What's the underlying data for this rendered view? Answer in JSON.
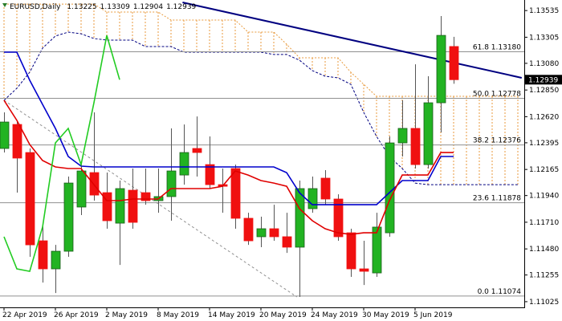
{
  "chart_data": {
    "type": "candlestick",
    "title": "EURUSD,Daily",
    "categories": [
      "22 Apr 2019",
      null,
      null,
      null,
      "26 Apr 2019",
      null,
      null,
      null,
      "2 May 2019",
      null,
      null,
      null,
      "8 May 2019",
      null,
      null,
      null,
      "14 May 2019",
      null,
      null,
      null,
      "20 May 2019",
      null,
      null,
      null,
      "24 May 2019",
      null,
      null,
      null,
      "30 May 2019",
      null,
      null,
      null,
      "5 Jun 2019",
      null,
      null,
      null,
      null,
      null,
      null,
      null,
      null
    ],
    "open": [
      1.12346,
      1.12553,
      1.12311,
      1.1155,
      1.11308,
      1.1146,
      1.11841,
      1.12138,
      1.11965,
      1.11702,
      1.11986,
      1.11965,
      1.11896,
      1.11931,
      1.12117,
      1.12346,
      1.12207,
      1.12034,
      1.12173,
      1.11744,
      1.11585,
      1.11654,
      1.11585,
      1.11495,
      1.11827,
      1.1209,
      1.1191,
      1.11619,
      1.11308,
      1.11273,
      1.11619,
      1.12394,
      1.12519,
      1.12207,
      1.1274,
      1.13225,
      null,
      null,
      null,
      null,
      null
    ],
    "high": [
      1.12657,
      1.12588,
      1.12346,
      1.11688,
      1.11515,
      1.12104,
      1.12207,
      1.12657,
      1.12138,
      1.12069,
      1.12173,
      1.12173,
      1.12173,
      1.12519,
      1.12553,
      1.12622,
      1.1245,
      1.12173,
      1.12207,
      1.11792,
      1.11758,
      1.11861,
      1.11792,
      1.12069,
      1.12104,
      1.12159,
      1.11951,
      1.11654,
      1.1155,
      1.11792,
      1.1245,
      1.12761,
      1.13072,
      1.12969,
      1.13488,
      1.13309,
      null,
      null,
      null,
      null,
      null
    ],
    "low": [
      1.12311,
      1.11965,
      1.11412,
      1.1119,
      1.111,
      1.11412,
      1.11772,
      1.11896,
      1.11654,
      1.11342,
      1.11654,
      1.11861,
      1.11792,
      1.11723,
      1.12034,
      1.12104,
      1.12,
      1.11792,
      1.11654,
      1.11515,
      1.11495,
      1.1155,
      1.11446,
      1.11066,
      1.11792,
      1.11861,
      1.1155,
      1.11239,
      1.11169,
      1.11239,
      1.11585,
      1.12277,
      1.12173,
      1.12173,
      1.12484,
      1.12904,
      null,
      null,
      null,
      null,
      null
    ],
    "close": [
      1.12574,
      1.12263,
      1.11515,
      1.11308,
      1.1146,
      1.12048,
      1.12152,
      1.11944,
      1.11723,
      1.12,
      1.11709,
      1.11896,
      1.11931,
      1.12152,
      1.12311,
      1.12311,
      1.12034,
      1.1202,
      1.11744,
      1.1155,
      1.11654,
      1.11585,
      1.11495,
      1.12,
      1.12,
      1.1191,
      1.11585,
      1.11308,
      1.11287,
      1.11668,
      1.12394,
      1.12519,
      1.12207,
      1.1274,
      1.13321,
      1.12939,
      null,
      null,
      null,
      null,
      null
    ],
    "up_color": "#22b322",
    "down_color": "#f01010",
    "lines": [
      {
        "color": "#0000cc",
        "dash": false,
        "values": [
          1.13176,
          1.13176,
          1.12934,
          1.12726,
          1.12519,
          1.12277,
          1.12194,
          1.12187,
          1.12187,
          1.12187,
          1.12187,
          1.12187,
          1.12187,
          1.12187,
          1.12187,
          1.12187,
          1.12187,
          1.12187,
          1.12187,
          1.12187,
          1.12187,
          1.12187,
          1.12138,
          1.11965,
          1.11861,
          1.11861,
          1.11861,
          1.11861,
          1.11861,
          1.11861,
          1.11965,
          1.12069,
          1.12069,
          1.12069,
          1.12277,
          1.12277,
          null,
          null,
          null,
          null,
          null
        ]
      },
      {
        "color": "#e00000",
        "dash": false,
        "values": [
          1.12761,
          1.12588,
          1.1238,
          1.12242,
          1.12187,
          1.12173,
          1.12173,
          1.12034,
          1.11896,
          1.11896,
          1.1191,
          1.1191,
          1.1191,
          1.12,
          1.12,
          1.12,
          1.12,
          1.1202,
          1.12152,
          1.12117,
          1.12069,
          1.12048,
          1.1202,
          1.11827,
          1.11723,
          1.11654,
          1.11619,
          1.11605,
          1.11619,
          1.11619,
          1.11896,
          1.12117,
          1.12117,
          1.12117,
          1.12311,
          1.12311,
          null,
          null,
          null,
          null,
          null
        ]
      },
      {
        "color": "#22cc22",
        "dash": false,
        "values": [
          1.11585,
          1.11308,
          1.11287,
          1.11668,
          1.12394,
          1.12519,
          1.12207,
          1.1274,
          1.13321,
          1.12939,
          null,
          null,
          null,
          null,
          null,
          null,
          null,
          null,
          null,
          null,
          null,
          null,
          null,
          null,
          null,
          null,
          null,
          null,
          null,
          null,
          null,
          null,
          null,
          null,
          null,
          null,
          null,
          null,
          null,
          null,
          null
        ]
      }
    ],
    "cloud": {
      "color": "#e89a3c",
      "lower_color": "#000080",
      "upper": [
        1.13591,
        1.13591,
        1.13591,
        1.13591,
        1.13591,
        1.13591,
        1.13591,
        1.13591,
        1.13522,
        1.13522,
        1.13522,
        1.13522,
        1.13522,
        1.13453,
        1.13453,
        1.13453,
        1.13453,
        1.13453,
        1.13453,
        1.13349,
        1.13349,
        1.13349,
        1.13245,
        1.13128,
        1.13128,
        1.13128,
        1.13128,
        1.13003,
        1.12899,
        1.12796,
        1.12796,
        1.12796,
        1.12796,
        1.12796,
        1.12796,
        1.12796,
        1.12796,
        1.12796,
        1.12796,
        1.12796,
        1.12796
      ],
      "lower": [
        1.12761,
        1.12865,
        1.13003,
        1.13211,
        1.13315,
        1.13349,
        1.13335,
        1.13294,
        1.1328,
        1.1328,
        1.1328,
        1.13225,
        1.13225,
        1.13225,
        1.13176,
        1.13176,
        1.13176,
        1.13176,
        1.13176,
        1.13176,
        1.13176,
        1.13156,
        1.13156,
        1.13107,
        1.13017,
        1.12969,
        1.12955,
        1.12899,
        1.12657,
        1.1245,
        1.12277,
        1.12173,
        1.12048,
        1.12034,
        1.12034,
        1.12034,
        1.12034,
        1.12034,
        1.12034,
        1.12034,
        1.12034
      ]
    },
    "trendlines": [
      {
        "color": "#000080",
        "dash": false,
        "x": [
          13.9,
          40.3
        ],
        "y": [
          1.13605,
          1.12955
        ]
      },
      {
        "color": "#909090",
        "dash": true,
        "x": [
          0,
          22.8
        ],
        "y": [
          1.12761,
          1.11066
        ]
      }
    ],
    "fib_levels": [
      {
        "value": 1.1318,
        "label": "61.8 1.13180"
      },
      {
        "value": 1.12778,
        "label": "50.0 1.12778"
      },
      {
        "value": 1.12376,
        "label": "38.2 1.12376"
      },
      {
        "value": 1.11878,
        "label": "23.6 1.11878"
      },
      {
        "value": 1.11074,
        "label": "0.0 1.11074"
      }
    ],
    "ylim": [
      1.10976,
      1.13626
    ],
    "yticks": [
      1.13535,
      1.13305,
      {
        "value": 1.1308,
        "label": "1.13080"
      },
      {
        "value": 1.1285,
        "label": "1.12850"
      },
      {
        "value": 1.1262,
        "label": "1.12620"
      },
      1.12395,
      1.12165,
      {
        "value": 1.1194,
        "label": "1.11940"
      },
      {
        "value": 1.1171,
        "label": "1.11710"
      },
      {
        "value": 1.1148,
        "label": "1.11480"
      },
      1.11255,
      1.11025
    ]
  }
}
